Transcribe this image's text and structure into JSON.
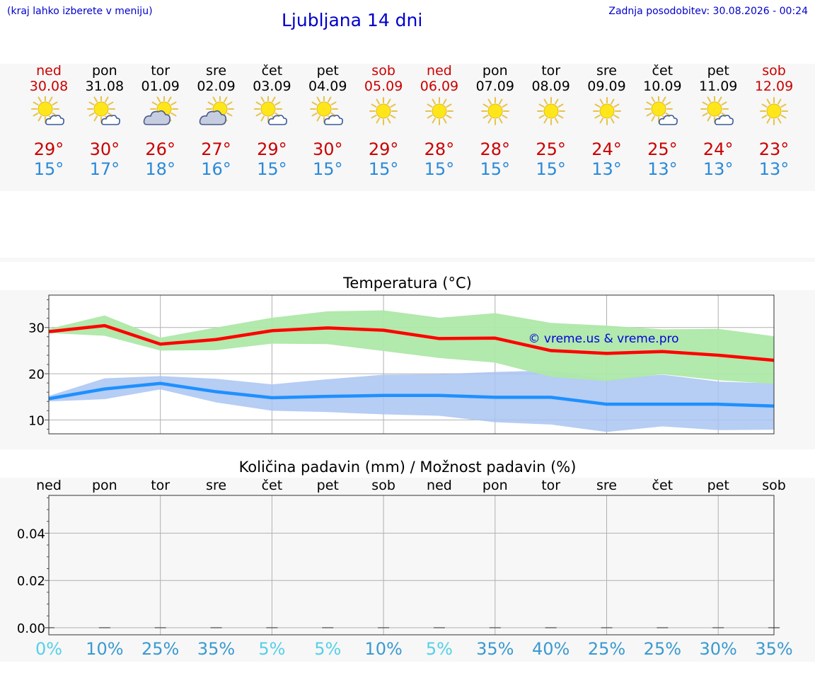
{
  "header": {
    "hint": "(kraj lahko izberete v meniju)",
    "title": "Ljubljana 14 dni",
    "updated": "Zadnja posodobitev: 30.08.2026 - 00:24"
  },
  "days": [
    {
      "name": "ned",
      "date": "30.08",
      "weekend": true,
      "icon": "sun-cloud-icon",
      "max": "29°",
      "min": "15°"
    },
    {
      "name": "pon",
      "date": "31.08",
      "weekend": false,
      "icon": "sun-cloud-icon",
      "max": "30°",
      "min": "17°"
    },
    {
      "name": "tor",
      "date": "01.09",
      "weekend": false,
      "icon": "cloud-sun-icon",
      "max": "26°",
      "min": "18°"
    },
    {
      "name": "sre",
      "date": "02.09",
      "weekend": false,
      "icon": "cloud-sun-icon",
      "max": "27°",
      "min": "16°"
    },
    {
      "name": "čet",
      "date": "03.09",
      "weekend": false,
      "icon": "sun-cloud-icon",
      "max": "29°",
      "min": "15°"
    },
    {
      "name": "pet",
      "date": "04.09",
      "weekend": false,
      "icon": "sun-cloud-icon",
      "max": "30°",
      "min": "15°"
    },
    {
      "name": "sob",
      "date": "05.09",
      "weekend": true,
      "icon": "sun-icon",
      "max": "29°",
      "min": "15°"
    },
    {
      "name": "ned",
      "date": "06.09",
      "weekend": true,
      "icon": "sun-icon",
      "max": "28°",
      "min": "15°"
    },
    {
      "name": "pon",
      "date": "07.09",
      "weekend": false,
      "icon": "sun-icon",
      "max": "28°",
      "min": "15°"
    },
    {
      "name": "tor",
      "date": "08.09",
      "weekend": false,
      "icon": "sun-icon",
      "max": "25°",
      "min": "15°"
    },
    {
      "name": "sre",
      "date": "09.09",
      "weekend": false,
      "icon": "sun-icon",
      "max": "24°",
      "min": "13°"
    },
    {
      "name": "čet",
      "date": "10.09",
      "weekend": false,
      "icon": "sun-cloud-icon",
      "max": "25°",
      "min": "13°"
    },
    {
      "name": "pet",
      "date": "11.09",
      "weekend": false,
      "icon": "sun-cloud-icon",
      "max": "24°",
      "min": "13°"
    },
    {
      "name": "sob",
      "date": "12.09",
      "weekend": true,
      "icon": "sun-icon",
      "max": "23°",
      "min": "13°"
    }
  ],
  "colors": {
    "weekend": "#cc0000",
    "max_line": "#ff0000",
    "min_line": "#1e90ff",
    "max_band": "#aee8a8",
    "min_band": "#a9c4f2",
    "prob_low": "#55d0e8",
    "prob_high": "#3a9ad0"
  },
  "chart_data": [
    {
      "type": "line",
      "title": "Temperatura (°C)",
      "watermark": "© vreme.us & vreme.pro",
      "ylim": [
        7,
        37
      ],
      "yticks": [
        10,
        20,
        30
      ],
      "grid": true,
      "series": [
        {
          "key": "max",
          "values": [
            29.1,
            30.4,
            26.4,
            27.4,
            29.3,
            29.9,
            29.4,
            27.6,
            27.7,
            25.0,
            24.4,
            24.8,
            24.0,
            22.9
          ],
          "band_low": [
            28.8,
            28.2,
            25.0,
            25.1,
            26.5,
            26.4,
            24.9,
            23.4,
            22.4,
            19.3,
            18.4,
            19.9,
            18.6,
            17.8
          ],
          "band_high": [
            29.7,
            32.6,
            27.8,
            30.0,
            32.1,
            33.5,
            33.7,
            32.1,
            33.1,
            31.0,
            30.4,
            29.6,
            29.7,
            28.1
          ]
        },
        {
          "key": "min",
          "values": [
            14.6,
            16.7,
            17.9,
            16.1,
            14.8,
            15.1,
            15.3,
            15.3,
            14.9,
            14.9,
            13.4,
            13.4,
            13.4,
            13.0
          ],
          "band_low": [
            14.0,
            14.5,
            16.6,
            13.8,
            12.0,
            11.7,
            11.2,
            10.9,
            9.5,
            9.0,
            7.4,
            8.6,
            7.8,
            7.9
          ],
          "band_high": [
            15.2,
            19.0,
            19.5,
            18.9,
            17.7,
            18.8,
            19.8,
            19.9,
            20.4,
            20.7,
            18.8,
            19.8,
            18.3,
            17.9
          ]
        }
      ]
    },
    {
      "type": "bar",
      "title": "Količina padavin (mm) / Možnost padavin (%)",
      "categories": [
        "ned",
        "pon",
        "tor",
        "sre",
        "čet",
        "pet",
        "sob",
        "ned",
        "pon",
        "tor",
        "sre",
        "čet",
        "pet",
        "sob"
      ],
      "values": [
        0,
        0,
        0,
        0,
        0,
        0,
        0,
        0,
        0,
        0,
        0,
        0,
        0,
        0
      ],
      "probability": [
        "0%",
        "10%",
        "25%",
        "35%",
        "5%",
        "5%",
        "10%",
        "5%",
        "35%",
        "40%",
        "25%",
        "25%",
        "30%",
        "35%"
      ],
      "ylim": [
        -0.003,
        0.056
      ],
      "yticks": [
        "0.00",
        "0.02",
        "0.04"
      ],
      "ytick_values": [
        0,
        0.02,
        0.04
      ],
      "grid": true
    }
  ]
}
